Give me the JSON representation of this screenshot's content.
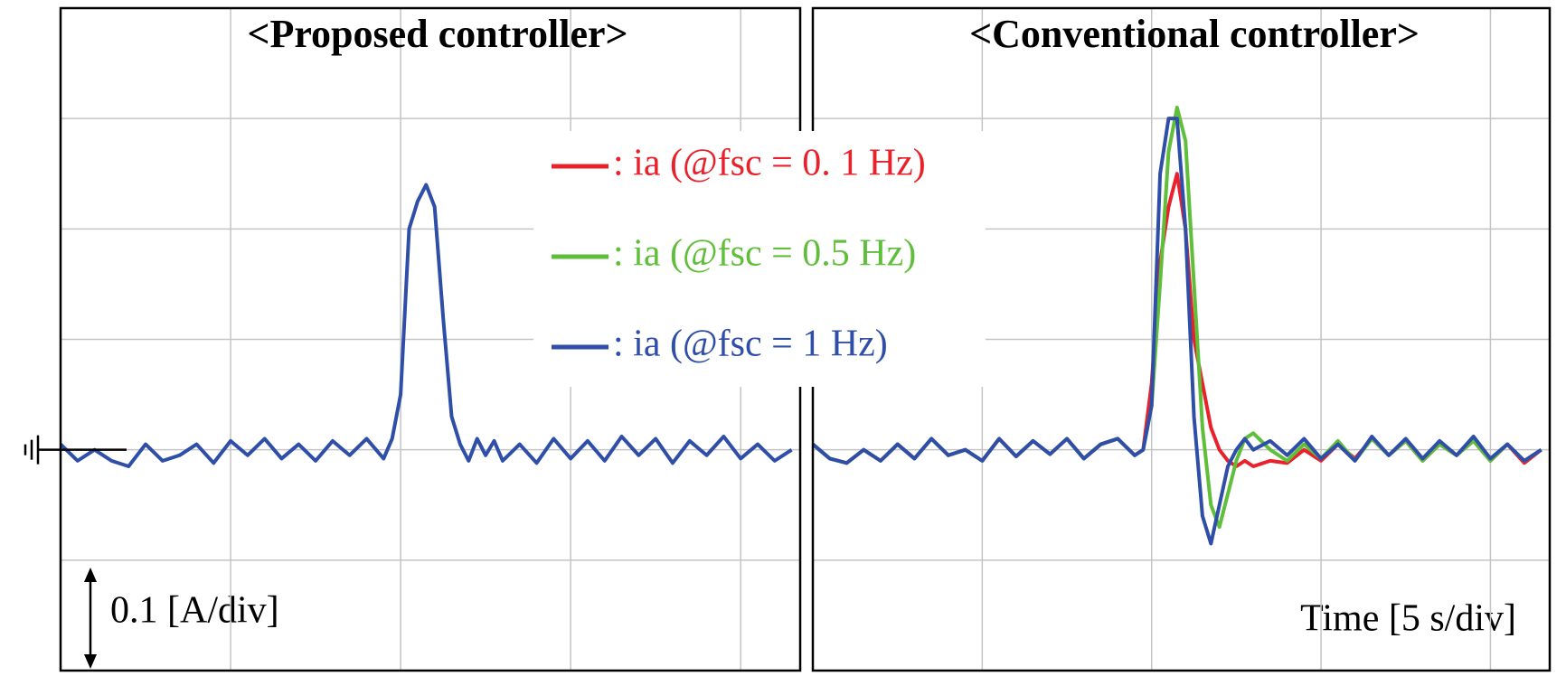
{
  "chart_data": [
    {
      "type": "line",
      "title": "<Proposed controller>",
      "annotations": [
        "0.1 [A/div]"
      ],
      "x": [
        0,
        0.5,
        1,
        1.5,
        2,
        2.5,
        3,
        3.5,
        4,
        4.5,
        5,
        5.5,
        6,
        6.5,
        7,
        7.5,
        8,
        8.5,
        9,
        9.5,
        9.75,
        10,
        10.25,
        10.5,
        10.75,
        11,
        11.25,
        11.5,
        11.75,
        12,
        12.25,
        12.5,
        12.75,
        13,
        13.5,
        14,
        14.5,
        15,
        15.5,
        16,
        16.5,
        17,
        17.5,
        18,
        18.5,
        19,
        19.5,
        20,
        20.5,
        21,
        21.5
      ],
      "series": [
        {
          "color": "#2f4ea8",
          "values": [
            0.005,
            -0.01,
            0.0,
            -0.01,
            -0.015,
            0.005,
            -0.01,
            -0.005,
            0.005,
            -0.012,
            0.008,
            -0.005,
            0.01,
            -0.008,
            0.005,
            -0.01,
            0.008,
            -0.005,
            0.01,
            -0.008,
            0.01,
            0.05,
            0.2,
            0.225,
            0.24,
            0.22,
            0.12,
            0.03,
            0.005,
            -0.01,
            0.01,
            -0.005,
            0.008,
            -0.01,
            0.005,
            -0.012,
            0.01,
            -0.008,
            0.008,
            -0.01,
            0.012,
            -0.005,
            0.01,
            -0.012,
            0.008,
            -0.005,
            0.012,
            -0.008,
            0.005,
            -0.01,
            0.0
          ]
        }
      ],
      "xlim": [
        0,
        21.75
      ],
      "ylim": [
        -0.2,
        0.4
      ],
      "xticks": [
        5,
        10,
        15,
        20
      ],
      "yticks": [
        -0.1,
        0,
        0.1,
        0.2,
        0.3
      ],
      "grid": true
    },
    {
      "type": "line",
      "title": "<Conventional controller>",
      "annotations": [
        "Time [5 s/div]"
      ],
      "x": [
        0,
        0.5,
        1,
        1.5,
        2,
        2.5,
        3,
        3.5,
        4,
        4.5,
        5,
        5.5,
        6,
        6.5,
        7,
        7.5,
        8,
        8.5,
        9,
        9.5,
        9.75,
        10,
        10.25,
        10.5,
        10.75,
        11,
        11.25,
        11.5,
        11.75,
        12,
        12.25,
        12.5,
        12.75,
        13,
        13.5,
        14,
        14.5,
        15,
        15.5,
        16,
        16.5,
        17,
        17.5,
        18,
        18.5,
        19,
        19.5,
        20,
        20.5,
        21,
        21.5
      ],
      "series": [
        {
          "name": ": ia (@fsc = 0. 1 Hz)",
          "color": "#e8212b",
          "values": [
            0.005,
            -0.008,
            -0.012,
            0.0,
            -0.01,
            0.005,
            -0.008,
            0.01,
            -0.005,
            0.0,
            -0.01,
            0.01,
            -0.006,
            0.008,
            -0.004,
            0.01,
            -0.008,
            0.005,
            0.01,
            -0.005,
            0.0,
            0.06,
            0.17,
            0.22,
            0.25,
            0.2,
            0.1,
            0.06,
            0.02,
            0.0,
            -0.01,
            -0.015,
            -0.01,
            -0.015,
            -0.01,
            -0.012,
            0.0,
            -0.01,
            0.005,
            -0.008,
            0.01,
            -0.005,
            0.008,
            -0.01,
            0.005,
            -0.005,
            0.008,
            -0.01,
            0.005,
            -0.012,
            0.0
          ]
        },
        {
          "name": ": ia (@fsc = 0.5 Hz)",
          "color": "#5fbf3a",
          "values": [
            0.005,
            -0.008,
            -0.012,
            0.0,
            -0.01,
            0.005,
            -0.008,
            0.01,
            -0.005,
            0.0,
            -0.01,
            0.01,
            -0.006,
            0.008,
            -0.004,
            0.01,
            -0.008,
            0.005,
            0.01,
            -0.005,
            0.0,
            0.04,
            0.15,
            0.27,
            0.31,
            0.28,
            0.15,
            0.02,
            -0.05,
            -0.07,
            -0.04,
            -0.01,
            0.01,
            0.015,
            0.0,
            -0.01,
            0.005,
            -0.008,
            0.008,
            -0.01,
            0.01,
            -0.005,
            0.008,
            -0.01,
            0.005,
            -0.005,
            0.008,
            -0.01,
            0.005,
            -0.01,
            0.0
          ]
        },
        {
          "name": ": ia (@fsc = 1 Hz)",
          "color": "#2f4ea8",
          "values": [
            0.005,
            -0.008,
            -0.012,
            0.0,
            -0.01,
            0.005,
            -0.008,
            0.01,
            -0.005,
            0.0,
            -0.01,
            0.01,
            -0.006,
            0.008,
            -0.004,
            0.01,
            -0.008,
            0.005,
            0.01,
            -0.005,
            0.0,
            0.04,
            0.25,
            0.3,
            0.3,
            0.2,
            0.03,
            -0.06,
            -0.085,
            -0.05,
            -0.015,
            0.0,
            0.01,
            0.0,
            0.008,
            -0.005,
            0.01,
            -0.008,
            0.005,
            -0.01,
            0.012,
            -0.005,
            0.01,
            -0.008,
            0.008,
            -0.005,
            0.012,
            -0.008,
            0.005,
            -0.01,
            0.0
          ]
        }
      ],
      "xlim": [
        0,
        21.75
      ],
      "ylim": [
        -0.2,
        0.4
      ],
      "xticks": [
        5,
        10,
        15,
        20
      ],
      "yticks": [
        -0.1,
        0,
        0.1,
        0.2,
        0.3
      ],
      "grid": true
    }
  ]
}
